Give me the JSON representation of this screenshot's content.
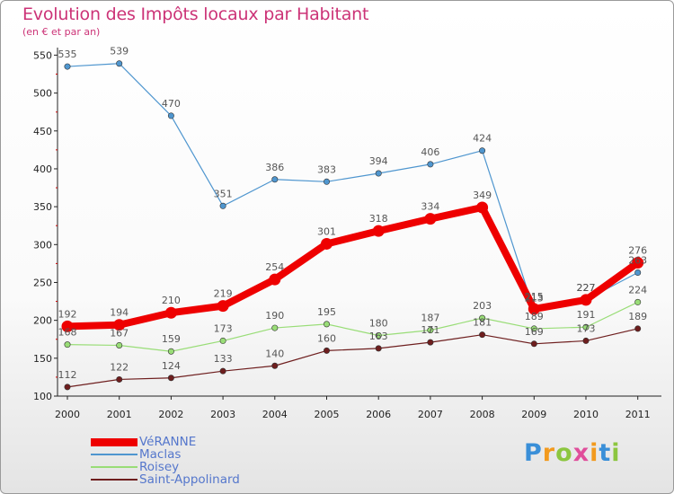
{
  "header": {
    "title": "Evolution des Impôts locaux par Habitant",
    "subtitle": "(en € et par an)"
  },
  "logo": {
    "letters": [
      "P",
      "r",
      "o",
      "x",
      "i",
      "t",
      "i"
    ],
    "colors": [
      "#3a8fd8",
      "#f29a1e",
      "#8cc63f",
      "#e04e9b",
      "#f29a1e",
      "#3a8fd8",
      "#8cc63f"
    ]
  },
  "chart_data": {
    "type": "line",
    "title": "Evolution des Impôts locaux par Habitant",
    "subtitle": "(en € et par an)",
    "xlabel": "",
    "ylabel": "",
    "categories": [
      "2000",
      "2001",
      "2002",
      "2003",
      "2004",
      "2005",
      "2006",
      "2007",
      "2008",
      "2009",
      "2010",
      "2011"
    ],
    "yticks": [
      100,
      150,
      200,
      250,
      300,
      350,
      400,
      450,
      500,
      550
    ],
    "ylim": [
      100,
      560
    ],
    "grid": false,
    "legend_position": "bottom-left",
    "series": [
      {
        "name": "VéRANNE",
        "color": "#ee0000",
        "values": [
          192,
          194,
          210,
          219,
          254,
          301,
          318,
          334,
          349,
          215,
          227,
          276
        ],
        "labels": [
          "192",
          "194",
          "210",
          "219",
          "254",
          "301",
          "318",
          "334",
          "349",
          "215",
          "227",
          "276"
        ]
      },
      {
        "name": "Maclas",
        "color": "#4f96cf",
        "values": [
          535,
          539,
          470,
          351,
          386,
          383,
          394,
          406,
          424,
          213,
          227,
          263
        ],
        "labels": [
          "535",
          "539",
          "470",
          "351",
          "386",
          "383",
          "394",
          "406",
          "424",
          "213",
          "227",
          "263"
        ]
      },
      {
        "name": "Roisey",
        "color": "#99dd77",
        "values": [
          168,
          167,
          159,
          173,
          190,
          195,
          180,
          187,
          203,
          189,
          191,
          224
        ],
        "labels": [
          "168",
          "167",
          "159",
          "173",
          "190",
          "195",
          "180",
          "187",
          "203",
          "189",
          "191",
          "224"
        ]
      },
      {
        "name": "Saint-Appolinard",
        "color": "#6e1e1e",
        "values": [
          112,
          122,
          124,
          133,
          140,
          160,
          163,
          171,
          181,
          169,
          173,
          189
        ],
        "labels": [
          "112",
          "122",
          "124",
          "133",
          "140",
          "160",
          "163",
          "171",
          "181",
          "169",
          "173",
          "189"
        ]
      }
    ]
  }
}
